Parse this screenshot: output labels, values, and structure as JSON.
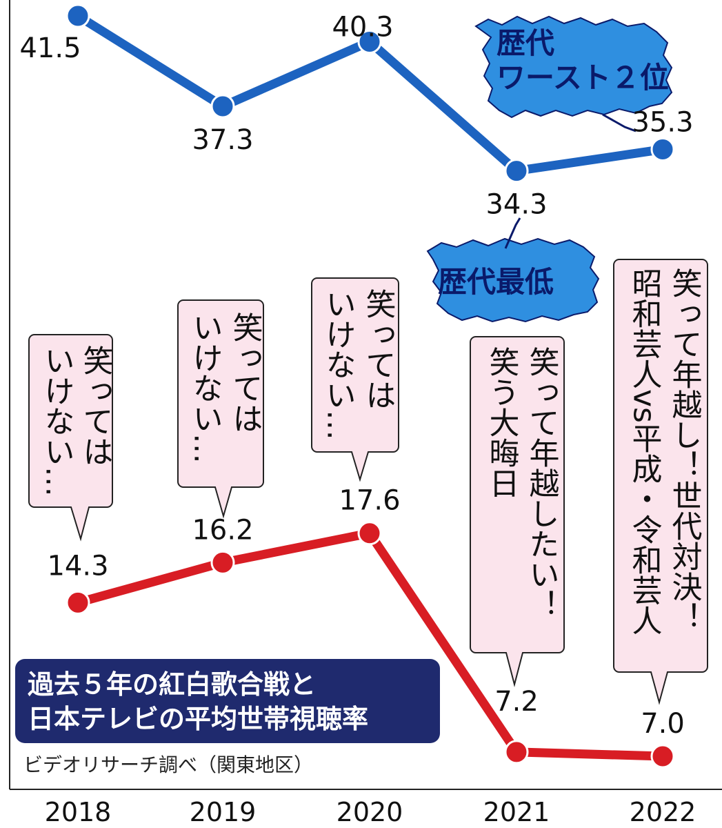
{
  "chart_data": {
    "type": "line",
    "categories": [
      "2018",
      "2019",
      "2020",
      "2021",
      "2022"
    ],
    "series": [
      {
        "color": "#1d63c0",
        "values": [
          41.5,
          37.3,
          40.3,
          34.3,
          35.3
        ],
        "labels": [
          "41.5",
          "37.3",
          "40.3",
          "34.3",
          "35.3"
        ]
      },
      {
        "color": "#d81d24",
        "values": [
          14.3,
          16.2,
          17.6,
          7.2,
          7.0
        ],
        "labels": [
          "14.3",
          "16.2",
          "17.6",
          "7.2",
          "7.0"
        ]
      }
    ],
    "title_lines": [
      "過去５年の紅白歌合戦と",
      "日本テレビの平均世帯視聴率"
    ],
    "source": "ビデオリサーチ調べ（関東地区）",
    "annotations": {
      "worst2": [
        "歴代",
        "ワースト２位"
      ],
      "lowest": "歴代最低",
      "programs": [
        {
          "lines": [
            "笑っては",
            "いけない…"
          ]
        },
        {
          "lines": [
            "笑っては",
            "いけない…"
          ]
        },
        {
          "lines": [
            "笑っては",
            "いけない…"
          ]
        },
        {
          "lines": [
            "笑って年越したい！",
            "笑う大晦日"
          ]
        },
        {
          "lines": [
            "笑って年越し！世代対決！",
            "昭和芸人vs平成・令和芸人"
          ]
        }
      ]
    },
    "grid": false
  }
}
